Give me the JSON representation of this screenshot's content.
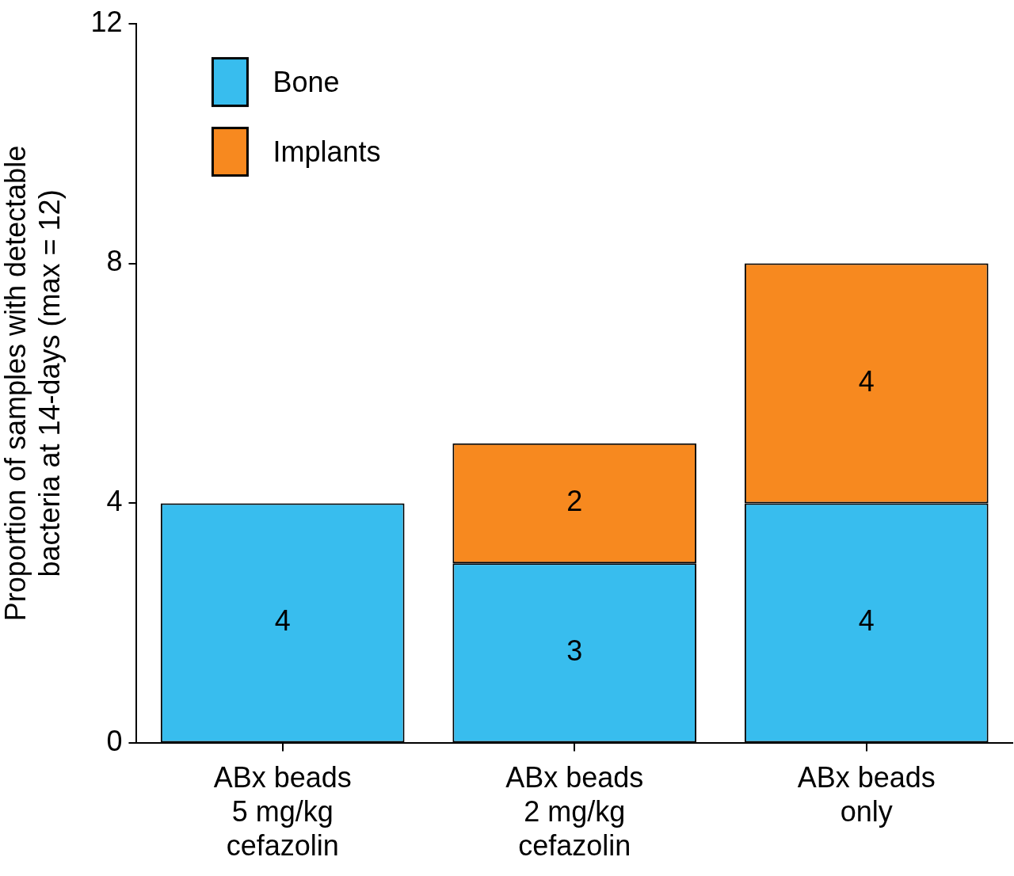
{
  "chart_data": {
    "type": "bar",
    "categories": [
      [
        "ABx beads",
        "5 mg/kg",
        "cefazolin"
      ],
      [
        "ABx beads",
        "2 mg/kg",
        "cefazolin"
      ],
      [
        "ABx beads",
        "only"
      ]
    ],
    "series": [
      {
        "name": "Bone",
        "color": "#38bdee",
        "values": [
          4,
          3,
          4
        ]
      },
      {
        "name": "Implants",
        "color": "#f7891f",
        "values": [
          null,
          2,
          4
        ]
      }
    ],
    "y_label": [
      "Proportion of samples with detectable",
      "bacteria at 14-days (max = 12)"
    ],
    "ylim": [
      0,
      12
    ],
    "yticks": [
      0,
      4,
      8,
      12
    ],
    "stacked": true,
    "grid": false,
    "data_labels": true,
    "legend": "upper left"
  }
}
